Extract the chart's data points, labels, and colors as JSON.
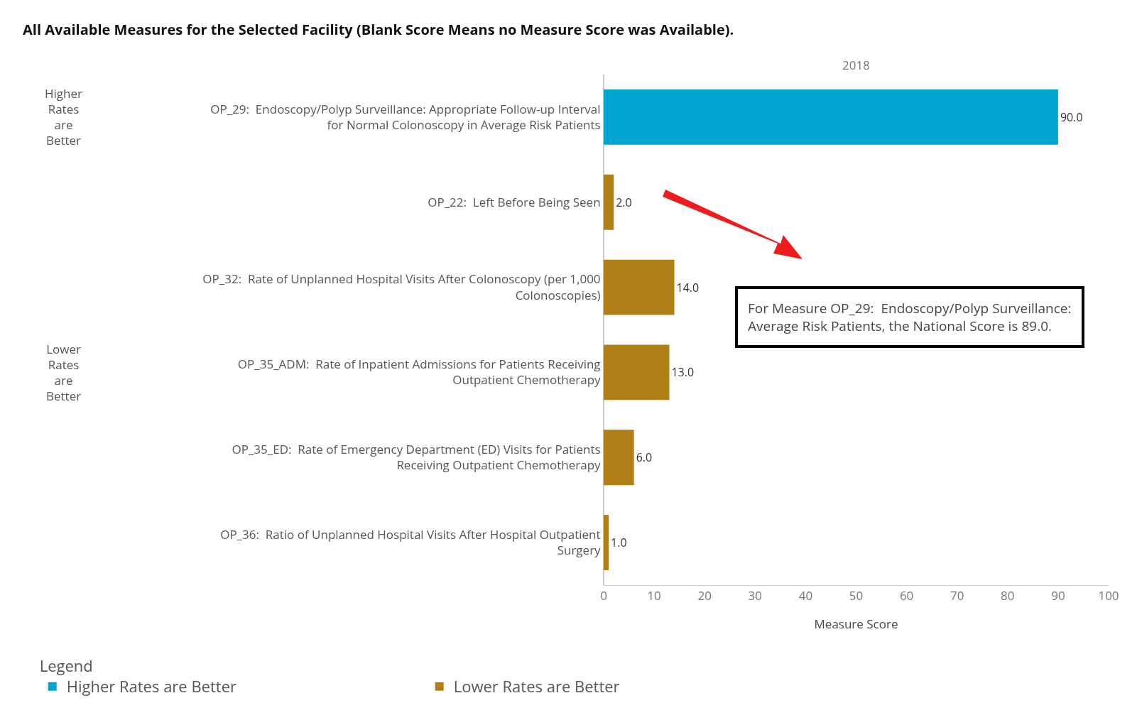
{
  "chart_data": {
    "type": "bar",
    "orientation": "horizontal",
    "title": "All Available Measures for the Selected Facility (Blank Score Means no Measure Score was Available).",
    "categories": [
      "OP_29:  Endoscopy/Polyp Surveillance: Appropriate Follow-up Interval for Normal Colonoscopy in Average Risk Patients",
      "OP_22:  Left Before Being Seen",
      "OP_32:  Rate of Unplanned Hospital Visits After Colonoscopy (per 1,000 Colonoscopies)",
      "OP_35_ADM:  Rate of Inpatient Admissions for Patients Receiving Outpatient Chemotherapy",
      "OP_35_ED:  Rate of Emergency Department (ED) Visits for Patients Receiving Outpatient Chemotherapy",
      "OP_36:  Ratio of Unplanned Hospital Visits After Hospital Outpatient Surgery"
    ],
    "series": [
      {
        "name": "Higher Rates are Better",
        "color": "#00a5d2",
        "values": [
          90,
          null,
          null,
          null,
          null,
          null
        ],
        "value_labels": [
          "90.0",
          null,
          null,
          null,
          null,
          null
        ]
      },
      {
        "name": "Lower Rates are Better",
        "color": "#b07f16",
        "values": [
          null,
          2,
          14,
          13,
          6,
          1
        ],
        "value_labels": [
          null,
          "2.0",
          "14.0",
          "13.0",
          "6.0",
          "1.0"
        ]
      }
    ],
    "xlabel": "Measure Score",
    "xlim": [
      0,
      100
    ],
    "xticks": [
      0,
      10,
      20,
      30,
      40,
      50,
      60,
      70,
      80,
      90,
      100
    ],
    "legend_title": "Legend",
    "legend": "bottom left",
    "grid": false,
    "annotations": [
      "2018",
      "For Measure OP_29:  Endoscopy/Polyp Surveillance: Average Risk Patients, the National Score is 89.0."
    ]
  }
}
